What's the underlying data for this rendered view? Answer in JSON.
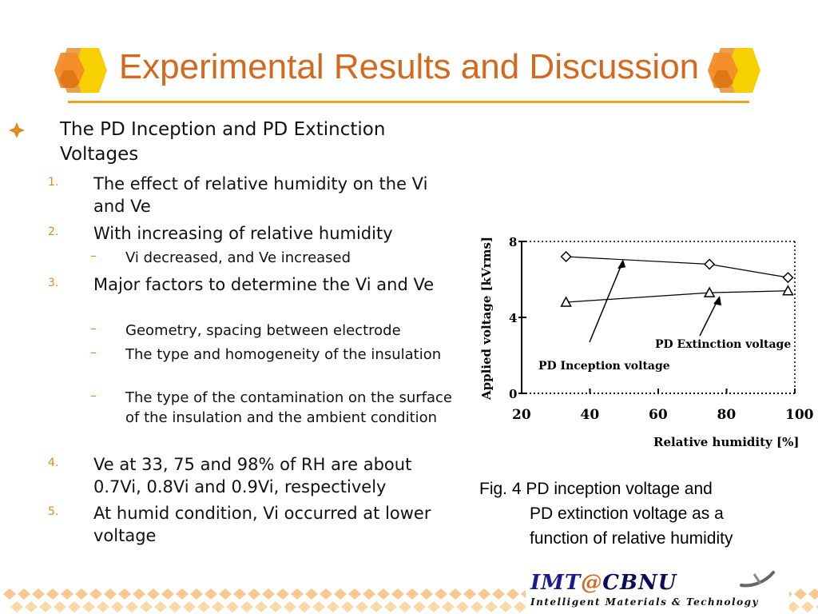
{
  "title": "Experimental Results and Discussion",
  "content": {
    "heading": "The PD Inception and PD Extinction Voltages",
    "items": [
      {
        "num": "1.",
        "text": "The effect of relative humidity on the Vi and Ve",
        "subs": []
      },
      {
        "num": "2.",
        "text": "With increasing of relative humidity",
        "subs": [
          "Vi decreased, and Ve increased"
        ]
      },
      {
        "num": "3.",
        "text": "Major factors to determine the Vi and Ve",
        "subs": [
          "Geometry, spacing between electrode",
          "The type and homogeneity of the insulation",
          "The type of the contamination on the surface of the insulation and the ambient condition"
        ]
      },
      {
        "num": "4.",
        "text": "Ve at 33, 75 and 98% of RH are about 0.7Vi, 0.8Vi and 0.9Vi, respectively",
        "subs": []
      },
      {
        "num": "5.",
        "text": "At humid condition, Vi occurred at lower voltage",
        "subs": []
      }
    ],
    "dash": "–"
  },
  "chart_data": {
    "type": "line",
    "xlabel": "Relative humidity [%]",
    "ylabel": "Applied voltage [kVrms]",
    "xlim": [
      20,
      100
    ],
    "ylim": [
      0,
      8
    ],
    "x_ticks": [
      "20",
      "40",
      "60",
      "80",
      "100"
    ],
    "y_ticks": [
      "0",
      "4",
      "8"
    ],
    "series": [
      {
        "name": "PD Inception voltage",
        "marker": "diamond",
        "x": [
          33,
          75,
          98
        ],
        "values": [
          7.2,
          6.8,
          6.1
        ]
      },
      {
        "name": "PD Extinction voltage",
        "marker": "triangle",
        "x": [
          33,
          75,
          98
        ],
        "values": [
          4.8,
          5.3,
          5.4
        ]
      }
    ],
    "annotations": [
      "PD Inception voltage",
      "PD Extinction voltage"
    ]
  },
  "caption": {
    "line1": "Fig. 4  PD inception voltage and",
    "line2": "PD extinction voltage as a",
    "line3": "function of relative humidity"
  },
  "logo": {
    "imt": "IMT",
    "at": "@",
    "cbnu": "CBNU",
    "subtitle": "Intelligent Materials & Technology"
  },
  "colors": {
    "accent": "#e08a1e",
    "title": "#d2691e",
    "rule": "#f0a020"
  }
}
